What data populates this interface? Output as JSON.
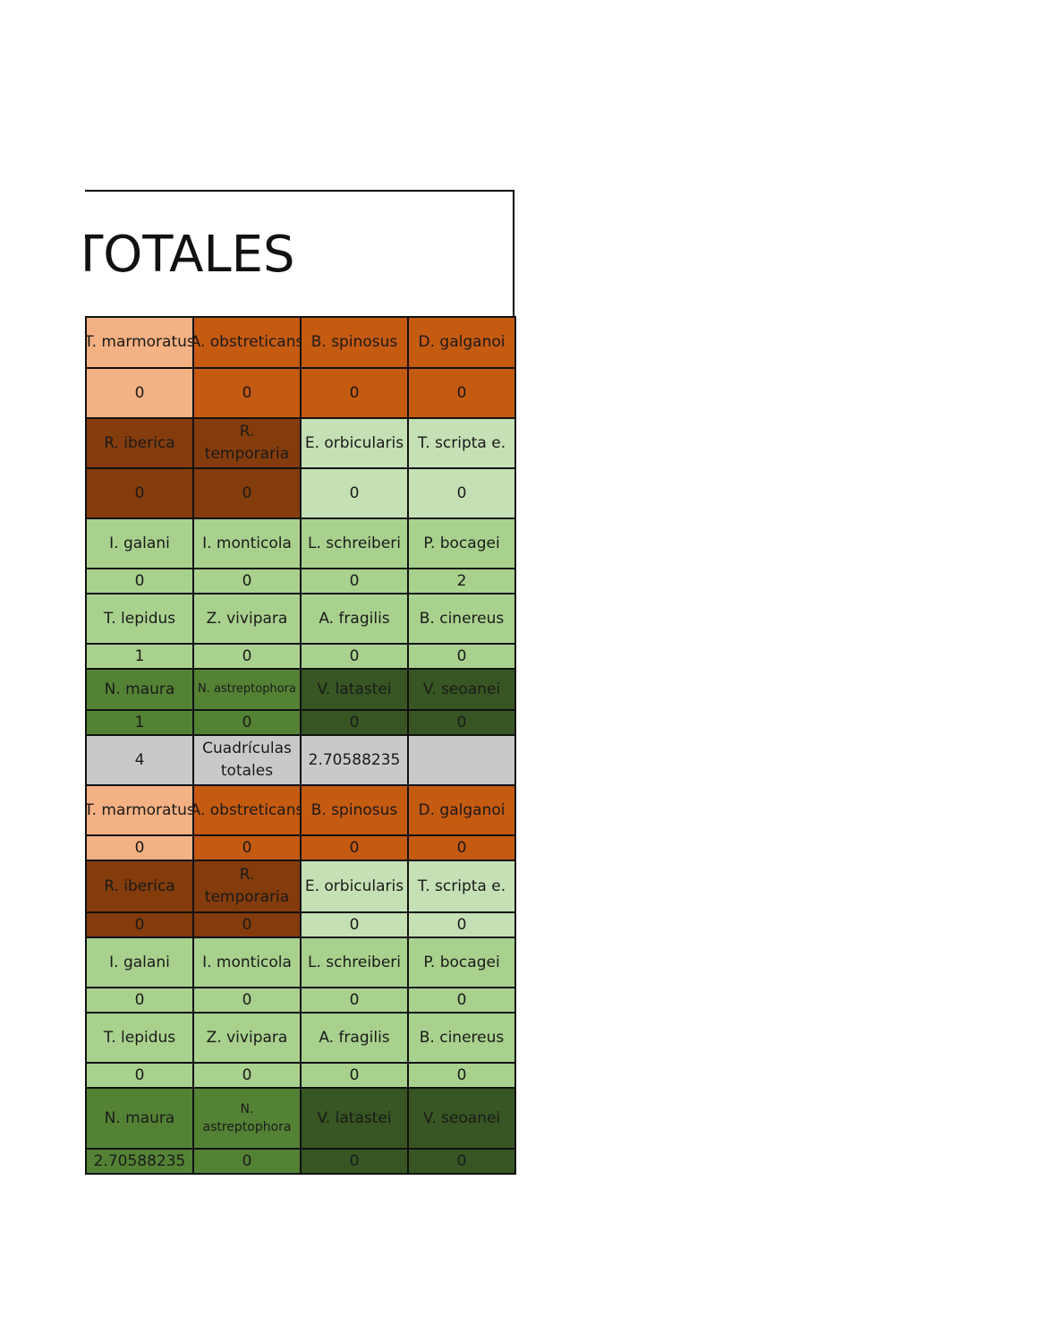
{
  "title": "TOTALES",
  "table": {
    "rows": [
      [
        "T. marmoratus",
        "A. obstreticans",
        "B. spinosus",
        "D. galganoi"
      ],
      [
        0,
        0,
        0,
        0
      ],
      [
        "R. iberica",
        "R. temporaria",
        "E. orbicularis",
        "T. scripta e."
      ],
      [
        0,
        0,
        0,
        0
      ],
      [
        "I. galani",
        "I. monticola",
        "L. schreiberi",
        "P. bocagei"
      ],
      [
        0,
        0,
        0,
        2
      ],
      [
        "T. lepidus",
        "Z. vivipara",
        "A. fragilis",
        "B. cinereus"
      ],
      [
        1,
        0,
        0,
        0
      ],
      [
        "N. maura",
        "N. astreptophora",
        "V. latastei",
        "V. seoanei"
      ],
      [
        1,
        0,
        0,
        0
      ],
      [
        4,
        "Cuadrículas totales",
        2.70588235
      ],
      [
        "T. marmoratus",
        "A. obstreticans",
        "B. spinosus",
        "D. galganoi"
      ],
      [
        0,
        0,
        0,
        0
      ],
      [
        "R. iberica",
        "R. temporaria",
        "E. orbicularis",
        "T. scripta e."
      ],
      [
        0,
        0,
        0,
        0
      ],
      [
        "I. galani",
        "I. monticola",
        "L. schreiberi",
        "P. bocagei"
      ],
      [
        0,
        0,
        0,
        0
      ],
      [
        "T. lepidus",
        "Z. vivipara",
        "A. fragilis",
        "B. cinereus"
      ],
      [
        0,
        0,
        0,
        0
      ],
      [
        "N. maura",
        "N. astreptophora",
        "V. latastei",
        "V. seoanei"
      ],
      [
        2.70588235,
        0,
        0,
        0
      ]
    ]
  }
}
